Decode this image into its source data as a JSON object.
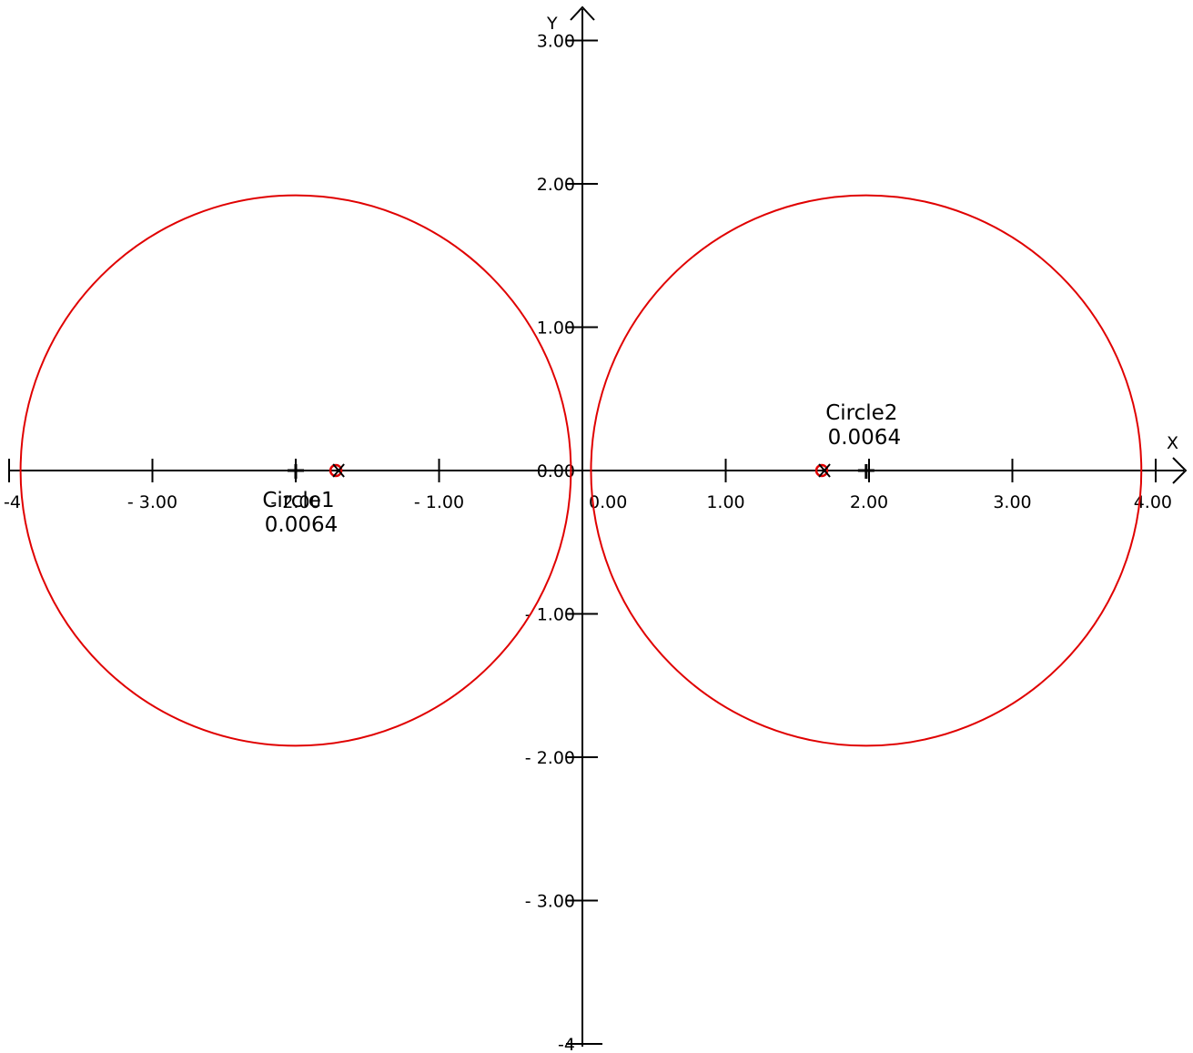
{
  "axes": {
    "x_title": "X",
    "y_title": "Y",
    "x_ticks": [
      {
        "value": -4,
        "label": "-4"
      },
      {
        "value": -3,
        "label": "- 3.00"
      },
      {
        "value": -2,
        "label": "- 2.00"
      },
      {
        "value": -1,
        "label": "- 1.00"
      },
      {
        "value": 0,
        "label": "0.00"
      },
      {
        "value": 1,
        "label": "1.00"
      },
      {
        "value": 2,
        "label": "2.00"
      },
      {
        "value": 3,
        "label": "3.00"
      },
      {
        "value": 4,
        "label": "4.00"
      }
    ],
    "y_ticks": [
      {
        "value": 3,
        "label": "3.00"
      },
      {
        "value": 2,
        "label": "2.00"
      },
      {
        "value": 1,
        "label": "1.00"
      },
      {
        "value": 0,
        "label": "0.00"
      },
      {
        "value": -1,
        "label": "- 1.00"
      },
      {
        "value": -2,
        "label": "- 2.00"
      },
      {
        "value": -3,
        "label": "- 3.00"
      },
      {
        "value": -4,
        "label": "-4"
      }
    ]
  },
  "circles": [
    {
      "name": "Circle1",
      "value": "0.0064",
      "center": [
        -2.0,
        0.0
      ],
      "radius": 1.92,
      "focus": [
        -1.72,
        0.0
      ],
      "color": "#e00000"
    },
    {
      "name": "Circle2",
      "value": "0.0064",
      "center": [
        1.98,
        0.0
      ],
      "radius": 1.92,
      "focus": [
        1.67,
        0.0
      ],
      "color": "#e00000"
    }
  ],
  "colors": {
    "axis": "#000000",
    "circle": "#e00000"
  }
}
